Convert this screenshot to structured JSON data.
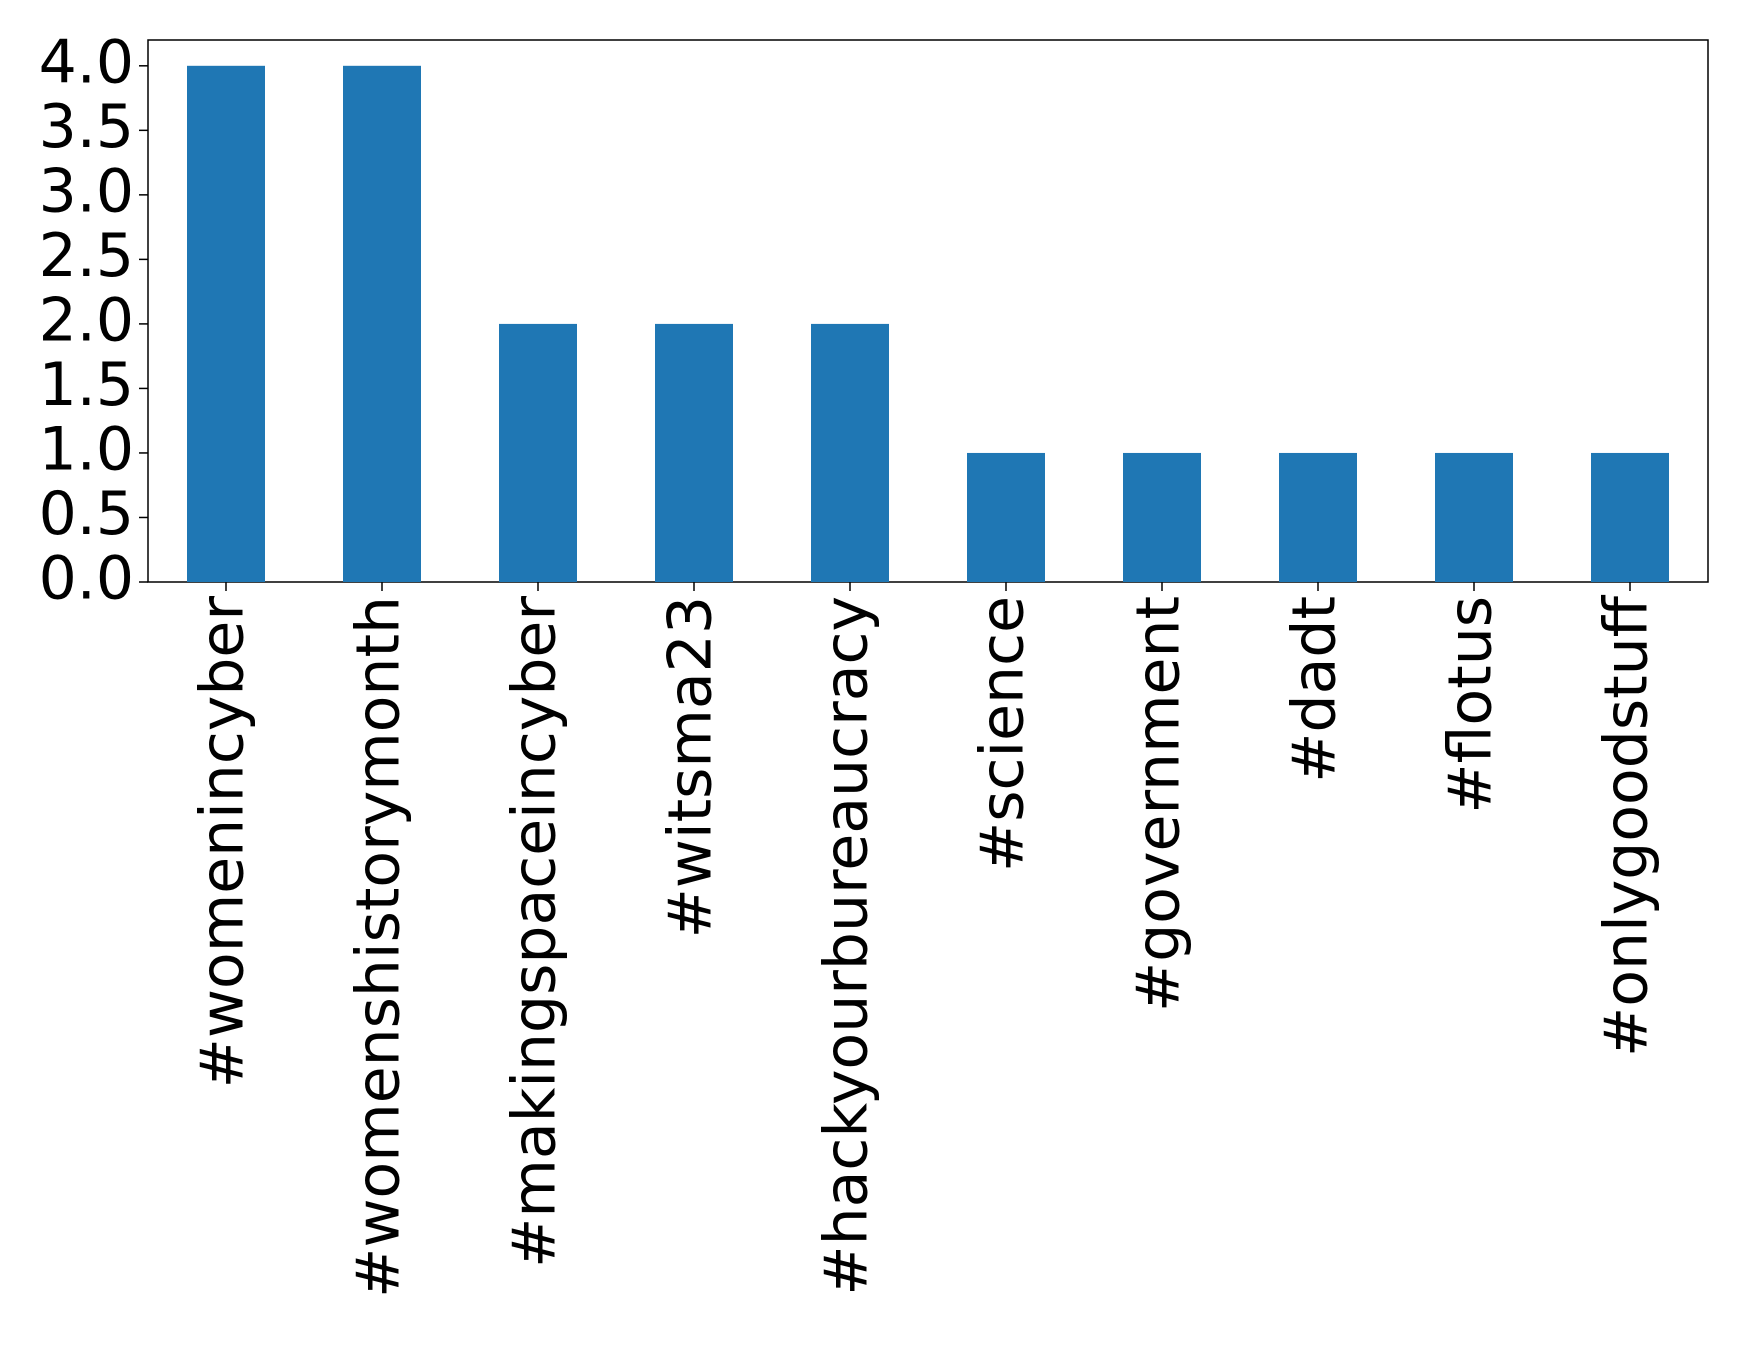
{
  "chart_data": {
    "type": "bar",
    "categories": [
      "#womenincyber",
      "#womenshistorymonth",
      "#makingspaceincyber",
      "#witsma23",
      "#hackyourbureaucracy",
      "#science",
      "#government",
      "#dadt",
      "#flotus",
      "#onlygoodstuff"
    ],
    "values": [
      4,
      4,
      2,
      2,
      2,
      1,
      1,
      1,
      1,
      1
    ],
    "color": "#1f77b4",
    "ylim": [
      0,
      4.2
    ],
    "yticks": [
      {
        "value": 0,
        "label": "0.0"
      },
      0.5,
      {
        "value": 1,
        "label": "1.0"
      },
      1.5,
      {
        "value": 2,
        "label": "2.0"
      },
      2.5,
      {
        "value": 3,
        "label": "3.0"
      },
      3.5,
      {
        "value": 4,
        "label": "4.0"
      }
    ],
    "grid": false
  }
}
